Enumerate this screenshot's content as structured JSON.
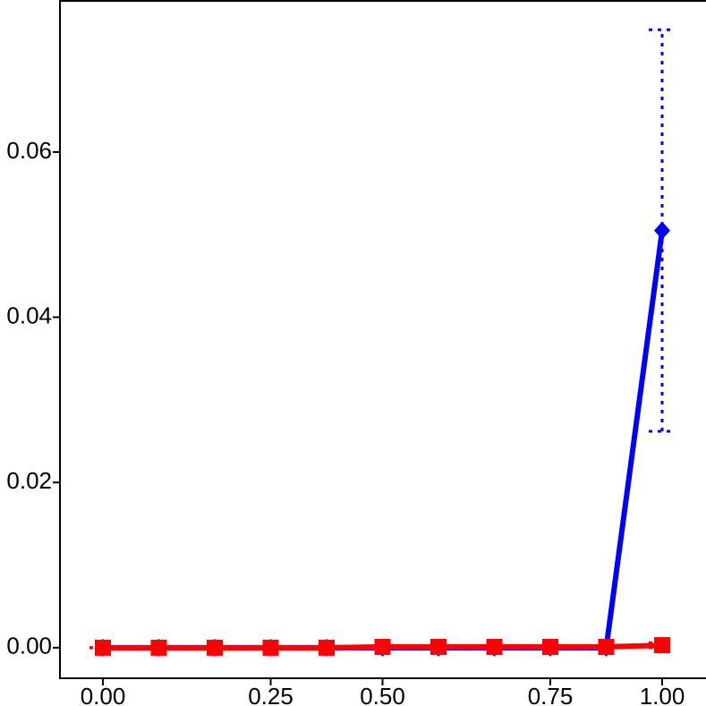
{
  "chart_data": {
    "type": "line",
    "categories": [
      "0.00",
      null,
      null,
      "0.25",
      null,
      "0.50",
      null,
      null,
      "0.75",
      null,
      "1.00"
    ],
    "series": [
      {
        "color": "#0000ff",
        "marker": "diamond",
        "values": [
          0,
          0,
          0,
          0,
          0,
          0,
          0,
          0,
          0,
          0,
          0.0505
        ],
        "errors": [
          0,
          0,
          0,
          0,
          0,
          0,
          0,
          0,
          0,
          0,
          0.0243
        ]
      },
      {
        "color": "#ff0000",
        "marker": "square",
        "values": [
          0,
          0,
          0,
          0,
          0,
          0.0001,
          0.0001,
          0.0001,
          0.0001,
          0.0001,
          0.0003
        ],
        "errors": [
          0,
          0,
          0,
          0,
          0,
          0,
          0,
          0,
          0,
          0,
          0.0003
        ]
      }
    ],
    "ylim": [
      -0.0037,
      0.0784
    ],
    "yticks": [
      {
        "value": 0,
        "label": "0.00"
      },
      {
        "value": 0.02,
        "label": "0.02"
      },
      {
        "value": 0.04,
        "label": "0.04"
      },
      {
        "value": 0.06,
        "label": "0.06"
      }
    ]
  }
}
